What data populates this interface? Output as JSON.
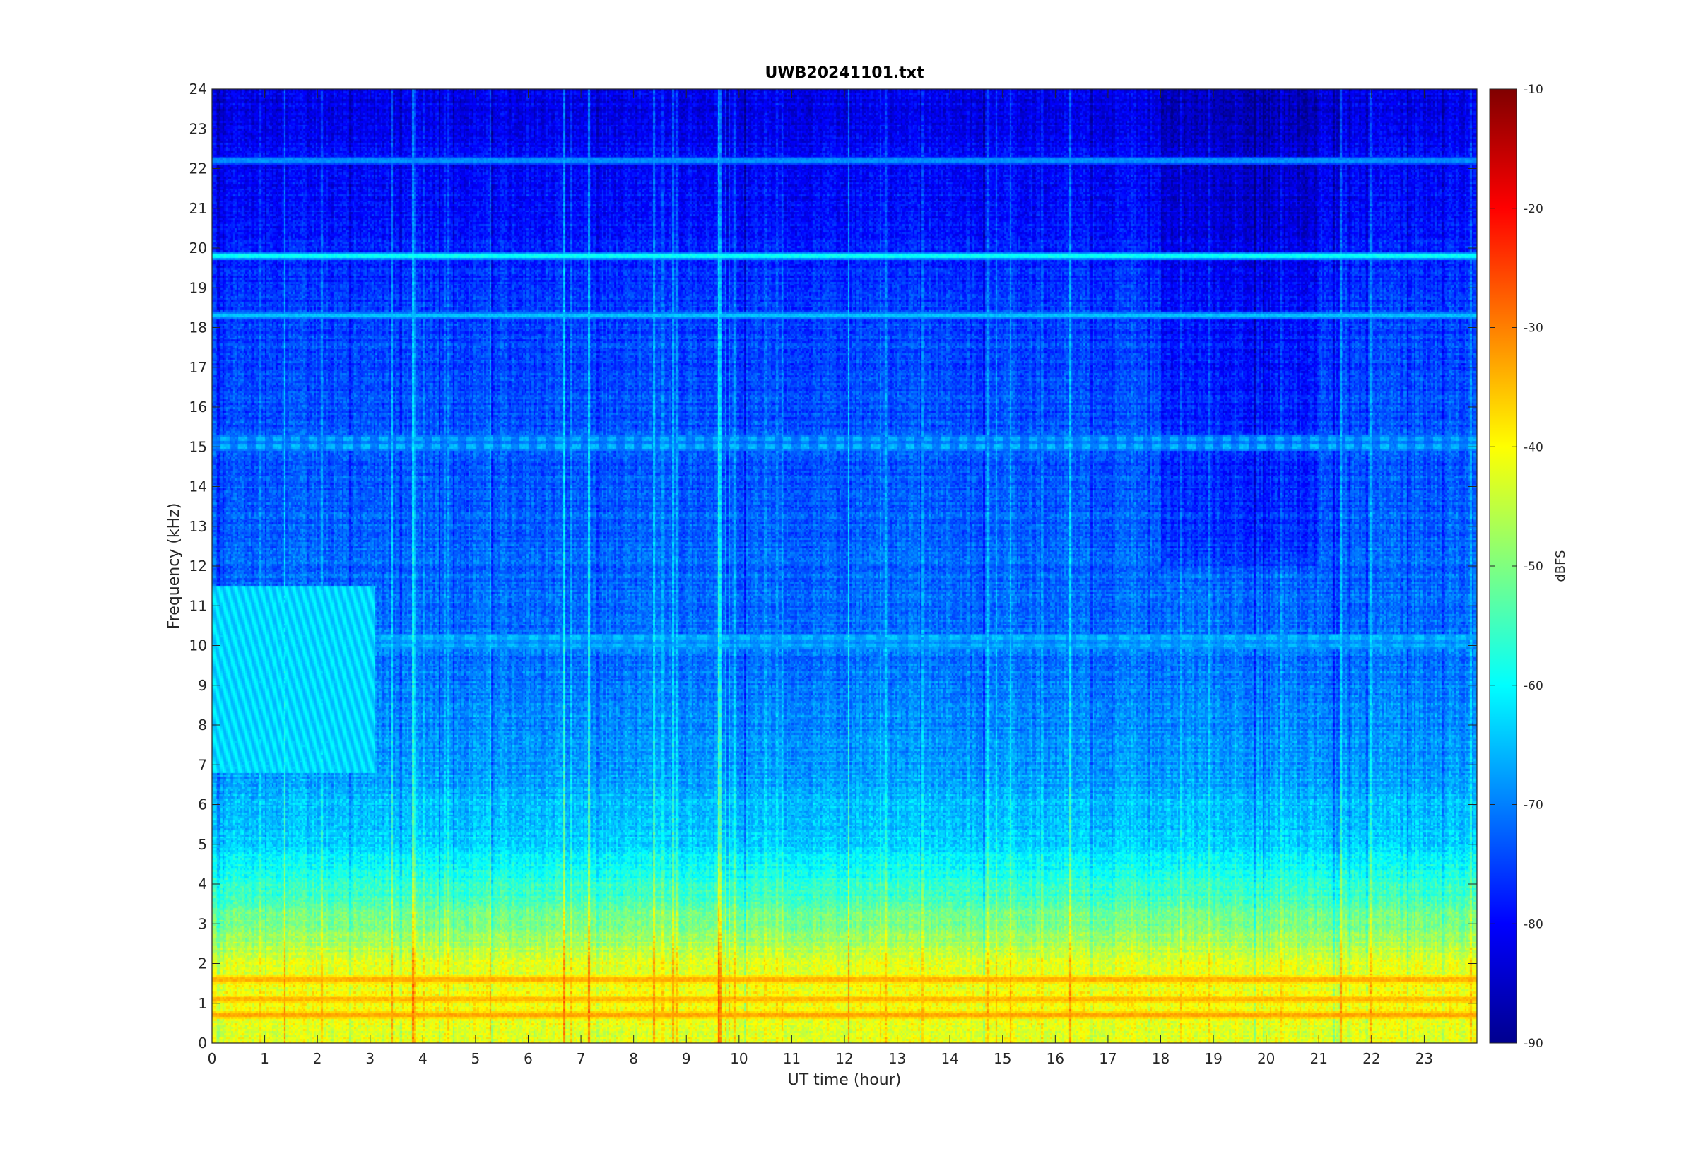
{
  "chart_data": {
    "type": "heatmap",
    "title": "UWB20241101.txt",
    "xlabel": "UT time (hour)",
    "ylabel": "Frequency (kHz)",
    "xlim": [
      0,
      24
    ],
    "ylim": [
      0,
      24
    ],
    "x_ticks": [
      "0",
      "1",
      "2",
      "3",
      "4",
      "5",
      "6",
      "7",
      "8",
      "9",
      "10",
      "11",
      "12",
      "13",
      "14",
      "15",
      "16",
      "17",
      "18",
      "19",
      "20",
      "21",
      "22",
      "23"
    ],
    "y_ticks": [
      "0",
      "1",
      "2",
      "3",
      "4",
      "5",
      "6",
      "7",
      "8",
      "9",
      "10",
      "11",
      "12",
      "13",
      "14",
      "15",
      "16",
      "17",
      "18",
      "19",
      "20",
      "21",
      "22",
      "23",
      "24"
    ],
    "colorbar": {
      "label": "dBFS",
      "range": [
        -90,
        -10
      ],
      "colormap": "jet",
      "ticks": [
        "-10",
        "-20",
        "-30",
        "-40",
        "-50",
        "-60",
        "-70",
        "-80",
        "-90"
      ]
    },
    "background_profile": [
      {
        "freq_khz": 0.3,
        "dbfs": -42
      },
      {
        "freq_khz": 1.0,
        "dbfs": -40
      },
      {
        "freq_khz": 2.0,
        "dbfs": -43
      },
      {
        "freq_khz": 3.0,
        "dbfs": -50
      },
      {
        "freq_khz": 4.0,
        "dbfs": -57
      },
      {
        "freq_khz": 5.0,
        "dbfs": -63
      },
      {
        "freq_khz": 7.0,
        "dbfs": -68
      },
      {
        "freq_khz": 10.0,
        "dbfs": -71
      },
      {
        "freq_khz": 14.0,
        "dbfs": -73
      },
      {
        "freq_khz": 18.0,
        "dbfs": -75
      },
      {
        "freq_khz": 21.0,
        "dbfs": -79
      },
      {
        "freq_khz": 24.0,
        "dbfs": -82
      }
    ],
    "persistent_lines": [
      {
        "freq_khz": 19.8,
        "dbfs": -55
      },
      {
        "freq_khz": 18.3,
        "dbfs": -62
      },
      {
        "freq_khz": 22.2,
        "dbfs": -66
      },
      {
        "freq_khz": 15.2,
        "dbfs": -64
      },
      {
        "freq_khz": 15.0,
        "dbfs": -63
      },
      {
        "freq_khz": 10.2,
        "dbfs": -63
      },
      {
        "freq_khz": 10.0,
        "dbfs": -64
      },
      {
        "freq_khz": 1.6,
        "dbfs": -32
      },
      {
        "freq_khz": 1.1,
        "dbfs": -33
      },
      {
        "freq_khz": 0.7,
        "dbfs": -31
      }
    ]
  }
}
